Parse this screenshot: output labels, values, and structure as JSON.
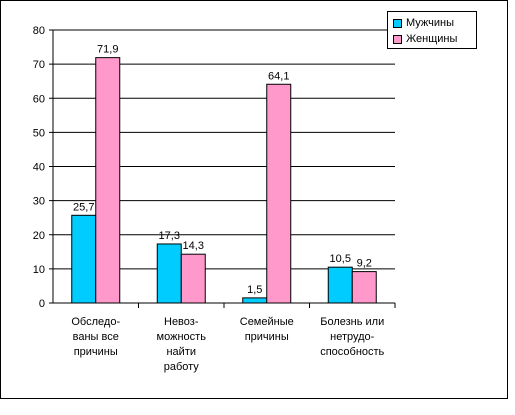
{
  "chart_data": {
    "type": "bar",
    "categories": [
      [
        "Обследо-",
        "ваны все",
        "причины"
      ],
      [
        "Невоз-",
        "можность",
        "найти",
        "работу"
      ],
      [
        "Семейные",
        "причины"
      ],
      [
        "Болезнь или",
        "нетрудо-",
        "способность"
      ]
    ],
    "series": [
      {
        "name": "Мужчины",
        "values": [
          25.7,
          17.3,
          1.5,
          10.5
        ],
        "labels": [
          "25,7",
          "17,3",
          "1,5",
          "10,5"
        ],
        "color": "#00ccff"
      },
      {
        "name": "Женщины",
        "values": [
          71.9,
          14.3,
          64.1,
          9.2
        ],
        "labels": [
          "71,9",
          "14,3",
          "64,1",
          "9,2"
        ],
        "color": "#ff99cc"
      }
    ],
    "yticks": [
      "0",
      "10",
      "20",
      "30",
      "40",
      "50",
      "60",
      "70",
      "80"
    ],
    "ylim": [
      0,
      80
    ],
    "grid": true,
    "legend": "top-right"
  }
}
